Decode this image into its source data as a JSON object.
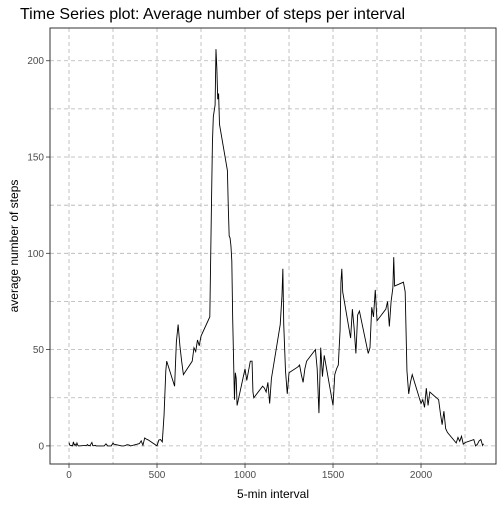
{
  "chart_data": {
    "type": "line",
    "title": "Time Series plot: Average number of steps per interval",
    "x_label": "5-min interval",
    "y_label": "average number of steps",
    "color": "#000000",
    "grid": true,
    "xlim": [
      -108,
      2426
    ],
    "ylim": [
      -9.4,
      217
    ],
    "xticks": [
      0,
      500,
      1000,
      1500,
      2000
    ],
    "yticks": [
      0,
      50,
      100,
      150,
      200
    ],
    "x_minor_ticks": [
      250,
      750,
      1250,
      1750,
      2250
    ],
    "y_minor_ticks": [
      25,
      75,
      125,
      175
    ],
    "x": [
      0,
      5,
      10,
      15,
      20,
      25,
      30,
      35,
      40,
      45,
      50,
      55,
      100,
      105,
      110,
      115,
      120,
      125,
      130,
      135,
      140,
      150,
      155,
      200,
      210,
      220,
      230,
      240,
      250,
      255,
      300,
      310,
      320,
      330,
      340,
      350,
      400,
      410,
      420,
      430,
      440,
      450,
      500,
      510,
      520,
      530,
      540,
      550,
      555,
      600,
      610,
      620,
      630,
      640,
      650,
      700,
      710,
      720,
      730,
      740,
      750,
      800,
      810,
      815,
      820,
      830,
      835,
      840,
      845,
      850,
      855,
      900,
      905,
      910,
      915,
      920,
      925,
      930,
      935,
      940,
      945,
      950,
      955,
      1000,
      1010,
      1020,
      1030,
      1040,
      1045,
      1050,
      1100,
      1110,
      1120,
      1130,
      1140,
      1150,
      1200,
      1210,
      1215,
      1220,
      1230,
      1240,
      1250,
      1300,
      1310,
      1320,
      1330,
      1340,
      1350,
      1400,
      1410,
      1420,
      1430,
      1440,
      1450,
      1500,
      1510,
      1520,
      1530,
      1540,
      1545,
      1550,
      1555,
      1600,
      1610,
      1620,
      1630,
      1640,
      1650,
      1700,
      1710,
      1720,
      1730,
      1740,
      1750,
      1800,
      1810,
      1820,
      1830,
      1840,
      1845,
      1850,
      1900,
      1910,
      1920,
      1930,
      1940,
      1950,
      2000,
      2010,
      2020,
      2030,
      2040,
      2050,
      2100,
      2110,
      2120,
      2130,
      2140,
      2150,
      2200,
      2210,
      2220,
      2230,
      2240,
      2250,
      2300,
      2310,
      2320,
      2330,
      2340,
      2350,
      2355
    ],
    "values": [
      1.7,
      0.3,
      0.1,
      0.2,
      0,
      2.1,
      0.5,
      0.9,
      0,
      1.5,
      0.3,
      0,
      0.3,
      0.7,
      0.2,
      0.3,
      0,
      1.1,
      1.8,
      0.2,
      0.1,
      0.3,
      0,
      0,
      1.1,
      0,
      0,
      0,
      1.5,
      0.9,
      0,
      0,
      0.2,
      0.6,
      0.5,
      0,
      1.2,
      2.6,
      0.3,
      4.1,
      3.5,
      3.1,
      0,
      3.0,
      3.3,
      2.1,
      16,
      39,
      44,
      31,
      54,
      63,
      52,
      44,
      37,
      44,
      51,
      49,
      55,
      52,
      57,
      67,
      129,
      158,
      171,
      177,
      206,
      196,
      180,
      183,
      167,
      143,
      124,
      109,
      108,
      104,
      96,
      66,
      45,
      24,
      38,
      35,
      21,
      40,
      34,
      39,
      44,
      44,
      28,
      25,
      31,
      30,
      28,
      33,
      22,
      35,
      63,
      78,
      92,
      63,
      39,
      27,
      38,
      41,
      42,
      37,
      33,
      40,
      44,
      50,
      40,
      17,
      51,
      36,
      47,
      21,
      37,
      40,
      42,
      60,
      85,
      92,
      80,
      56,
      71,
      61,
      48,
      68,
      70,
      48,
      51,
      72,
      67,
      81,
      65,
      71,
      75,
      62,
      75,
      82,
      98,
      83,
      85,
      80,
      39,
      27,
      33,
      37,
      22,
      24,
      20,
      30,
      21,
      28,
      24,
      17,
      11,
      18,
      9,
      7,
      1.5,
      4.4,
      2.4,
      5,
      0.9,
      1.7,
      3.3,
      0,
      0.8,
      2.6,
      3.3,
      0.2,
      1.1
    ]
  }
}
